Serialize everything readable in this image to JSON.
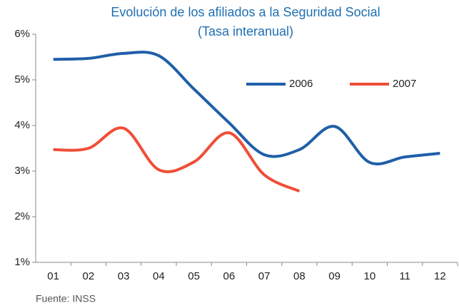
{
  "chart_data": {
    "type": "line",
    "title": "Evolución de los afiliados a la Seguridad Social",
    "subtitle": "(Tasa interanual)",
    "categories": [
      "01",
      "02",
      "03",
      "04",
      "05",
      "06",
      "07",
      "08",
      "09",
      "10",
      "11",
      "12"
    ],
    "series": [
      {
        "name": "2006",
        "color": "#1f5fa8",
        "values": [
          5.45,
          5.47,
          5.58,
          5.53,
          4.8,
          4.06,
          3.36,
          3.47,
          3.98,
          3.19,
          3.31,
          3.39
        ]
      },
      {
        "name": "2007",
        "color": "#f04e37",
        "values": [
          3.47,
          3.5,
          3.94,
          3.03,
          3.2,
          3.84,
          2.92,
          2.56,
          null,
          null,
          null,
          null
        ]
      }
    ],
    "ylim": [
      1,
      6
    ],
    "yticks": [
      {
        "value": 1,
        "label": "1%"
      },
      {
        "value": 2,
        "label": "2%"
      },
      {
        "value": 3,
        "label": "3%"
      },
      {
        "value": 4,
        "label": "4%"
      },
      {
        "value": 5,
        "label": "5%"
      },
      {
        "value": 6,
        "label": "6%"
      }
    ],
    "source": "Fuente: INSS"
  }
}
